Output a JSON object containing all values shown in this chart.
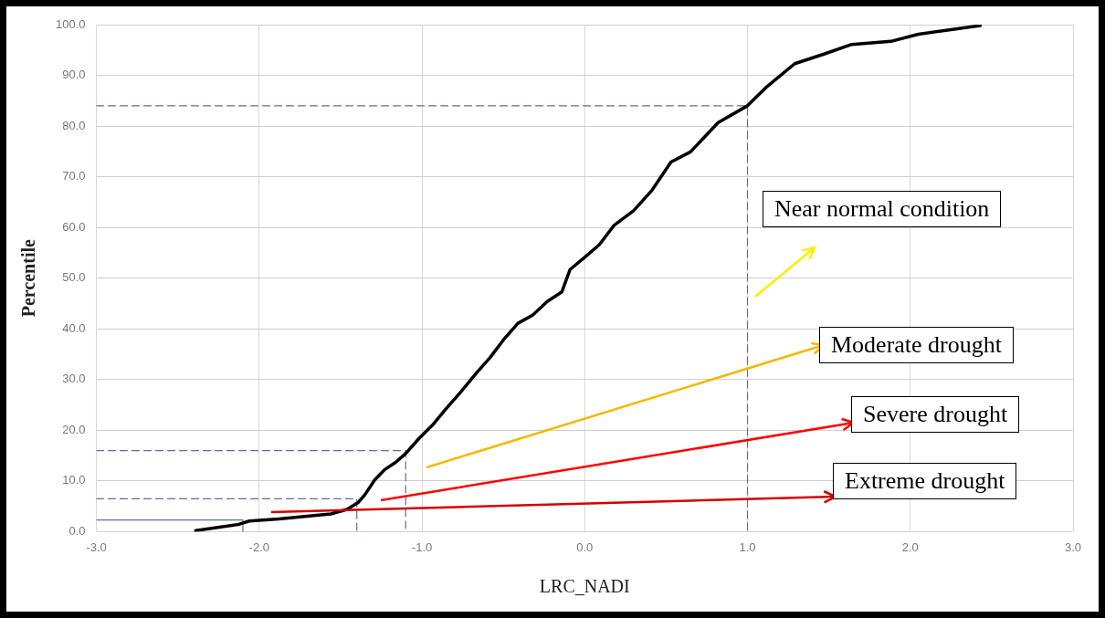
{
  "chart_data": {
    "type": "line",
    "xlabel": "LRC_NADI",
    "ylabel": "Percentile",
    "xlim": [
      -3,
      3
    ],
    "ylim": [
      0,
      100
    ],
    "xticks": [
      {
        "value": -3,
        "label": "-3.0"
      },
      {
        "value": -2,
        "label": "-2.0"
      },
      {
        "value": -1,
        "label": "-1.0"
      },
      {
        "value": 0,
        "label": "0.0"
      },
      {
        "value": 1,
        "label": "1.0"
      },
      {
        "value": 2,
        "label": "2.0"
      },
      {
        "value": 3,
        "label": "3.0"
      }
    ],
    "yticks": [
      {
        "value": 0,
        "label": "0.0"
      },
      {
        "value": 10,
        "label": "10.0"
      },
      {
        "value": 20,
        "label": "20.0"
      },
      {
        "value": 30,
        "label": "30.0"
      },
      {
        "value": 40,
        "label": "40.0"
      },
      {
        "value": 50,
        "label": "50.0"
      },
      {
        "value": 60,
        "label": "60.0"
      },
      {
        "value": 70,
        "label": "70.0"
      },
      {
        "value": 80,
        "label": "80.0"
      },
      {
        "value": 90,
        "label": "90.0"
      },
      {
        "value": 100,
        "label": "100.0"
      }
    ],
    "grid": true,
    "legend": false,
    "marker": "none",
    "series": [
      {
        "color": "#000000",
        "line_style": "solid",
        "x": [
          -2.39,
          -2.13,
          -2.06,
          -1.88,
          -1.56,
          -1.46,
          -1.39,
          -1.35,
          -1.29,
          -1.23,
          -1.16,
          -1.1,
          -1.02,
          -0.93,
          -0.85,
          -0.76,
          -0.67,
          -0.58,
          -0.5,
          -0.41,
          -0.32,
          -0.23,
          -0.14,
          -0.09,
          0,
          0.09,
          0.18,
          0.3,
          0.41,
          0.53,
          0.65,
          0.82,
          1,
          1.11,
          1.29,
          1.47,
          1.64,
          1.88,
          2.05,
          2.29,
          2.43
        ],
        "values": [
          0.2,
          1.4,
          2.1,
          2.5,
          3.5,
          4.4,
          5.8,
          7.3,
          10.2,
          12.2,
          13.7,
          15.4,
          18.3,
          21.2,
          24.3,
          27.6,
          31.1,
          34.4,
          37.8,
          41.1,
          42.7,
          45.4,
          47.3,
          51.7,
          54.1,
          56.6,
          60.4,
          63.3,
          67.2,
          72.9,
          74.9,
          80.7,
          84,
          87.5,
          92.3,
          94.2,
          96.1,
          96.7,
          98.1,
          99.2,
          99.8
        ]
      },
      {
        "color": "#5a6e9e",
        "line_style": "dashed",
        "x": [
          -3,
          1,
          1
        ],
        "values": [
          84,
          84,
          0
        ]
      },
      {
        "color": "#5a6e9e",
        "line_style": "dashed",
        "x": [
          -3,
          -1.1,
          -1.1
        ],
        "values": [
          16,
          16,
          0
        ]
      },
      {
        "color": "#5a6e9e",
        "line_style": "dashed",
        "x": [
          -3,
          -1.4,
          -1.4
        ],
        "values": [
          6.5,
          6.5,
          0
        ]
      },
      {
        "color": "#5a6e9e",
        "line_style": "solid",
        "x": [
          -3,
          -2.1,
          -2.1
        ],
        "values": [
          2.3,
          2.3,
          0
        ]
      }
    ],
    "annotations": [
      "Near normal condition",
      "Moderate drought",
      "Severe drought",
      "Extreme drought"
    ]
  }
}
